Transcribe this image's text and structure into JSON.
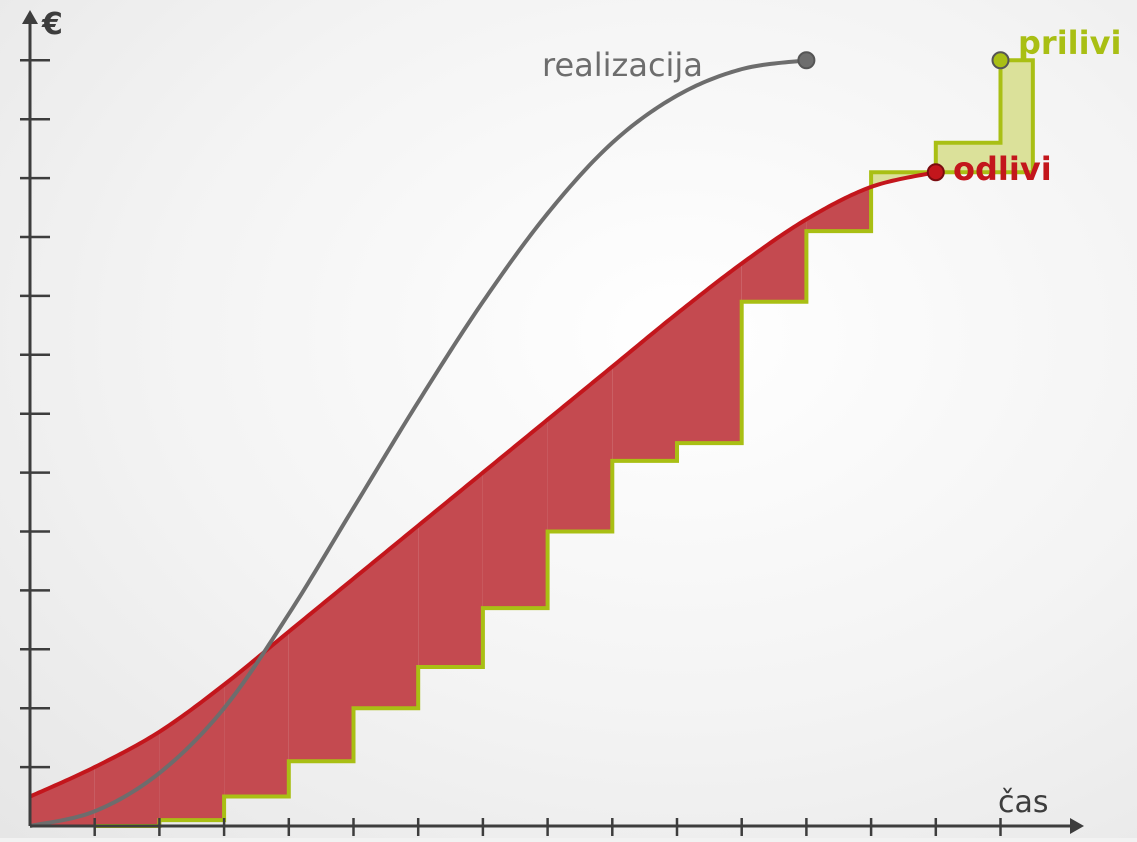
{
  "labels": {
    "y_axis": "€",
    "x_axis": "čas",
    "realizacija": "realizacija",
    "prilivi": "prilivi",
    "odlivi": "odlivi"
  },
  "colors": {
    "realizacija": "#6d6d6d",
    "prilivi_line": "#a9bf14",
    "prilivi_fill": "#dbe19a",
    "odlivi_line": "#c3161c",
    "odlivi_fill": "#c44a50",
    "axis": "#3d3d3d"
  },
  "chart_data": {
    "type": "line",
    "x_ticks": [
      1,
      2,
      3,
      4,
      5,
      6,
      7,
      8,
      9,
      10,
      11,
      12,
      13,
      14,
      15
    ],
    "y_ticks": [
      1,
      2,
      3,
      4,
      5,
      6,
      7,
      8,
      9,
      10,
      11,
      12,
      13
    ],
    "xlim": [
      0,
      15.5
    ],
    "ylim": [
      0,
      13.5
    ],
    "series": [
      {
        "name": "realizacija",
        "type": "curve",
        "x": [
          0,
          1,
          2,
          3,
          4,
          5,
          6,
          7,
          8,
          9,
          10,
          11,
          12
        ],
        "y": [
          0,
          0.25,
          0.9,
          2.0,
          3.6,
          5.4,
          7.2,
          8.9,
          10.4,
          11.6,
          12.4,
          12.85,
          13.0
        ]
      },
      {
        "name": "odlivi",
        "type": "curve",
        "x": [
          0,
          1,
          2,
          3,
          4,
          5,
          6,
          7,
          8,
          9,
          10,
          11,
          12,
          13,
          14
        ],
        "y": [
          0.5,
          1.0,
          1.6,
          2.4,
          3.3,
          4.2,
          5.1,
          6.0,
          6.9,
          7.8,
          8.7,
          9.55,
          10.3,
          10.85,
          11.1
        ]
      },
      {
        "name": "prilivi",
        "type": "step",
        "x": [
          1,
          2,
          3,
          4,
          5,
          6,
          7,
          8,
          9,
          10,
          11,
          12,
          13,
          14,
          15
        ],
        "y": [
          0,
          0.1,
          0.5,
          1.1,
          2.0,
          2.7,
          3.7,
          5.0,
          6.2,
          6.5,
          8.9,
          10.1,
          11.1,
          11.6,
          11.6
        ]
      }
    ]
  }
}
